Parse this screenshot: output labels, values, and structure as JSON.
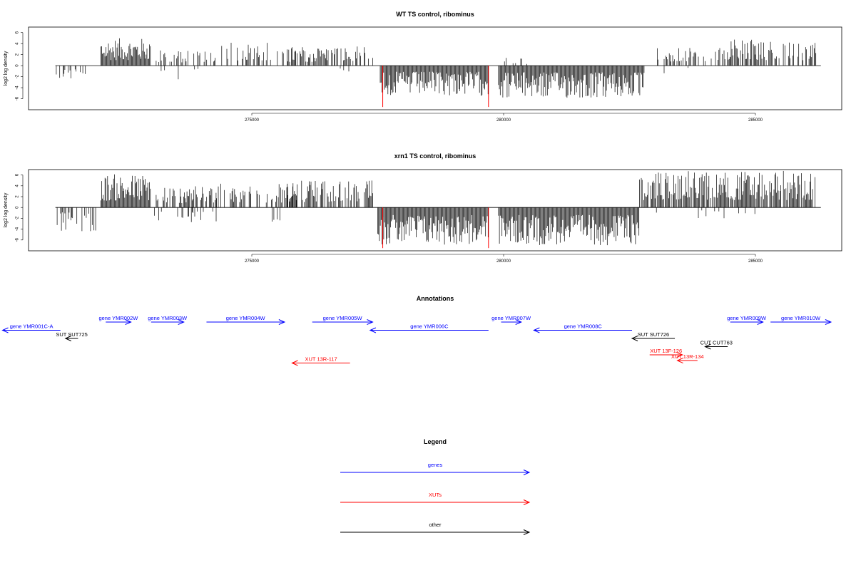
{
  "chart_data": [
    {
      "type": "bar",
      "title": "WT TS control, ribominus",
      "ylabel": "log2 log density",
      "xlim": [
        270000,
        286500
      ],
      "ylim": [
        -8,
        7
      ],
      "x_ticks": [
        275000,
        280000,
        285000
      ],
      "y_ticks": [
        6,
        4,
        2,
        0,
        -2,
        -4,
        -6
      ],
      "highlight_x": [
        277600,
        279700
      ],
      "highlight_y": -7.5,
      "regions": [
        {
          "x": [
            271100,
            271700
          ],
          "strand": "-",
          "max": 2.5,
          "density": 0.4
        },
        {
          "x": [
            272000,
            273000
          ],
          "strand": "+",
          "max": 5.0,
          "density": 1.0
        },
        {
          "x": [
            273100,
            274300
          ],
          "strand": "+",
          "max": 2.8,
          "density": 0.45
        },
        {
          "x": [
            273200,
            274000
          ],
          "strand": "-",
          "max": 2.5,
          "density": 0.1
        },
        {
          "x": [
            274300,
            275900
          ],
          "strand": "+",
          "max": 4.5,
          "density": 0.35
        },
        {
          "x": [
            275700,
            277400
          ],
          "strand": "+",
          "max": 3.5,
          "density": 0.6
        },
        {
          "x": [
            276400,
            277200
          ],
          "strand": "-",
          "max": 1.5,
          "density": 0.1
        },
        {
          "x": [
            277550,
            279700
          ],
          "strand": "-",
          "max": 5.5,
          "density": 1.0
        },
        {
          "x": [
            279900,
            282800
          ],
          "strand": "-",
          "max": 6.0,
          "density": 1.0
        },
        {
          "x": [
            280000,
            280600
          ],
          "strand": "+",
          "max": 1.5,
          "density": 0.15
        },
        {
          "x": [
            283000,
            284500
          ],
          "strand": "+",
          "max": 3.2,
          "density": 0.5
        },
        {
          "x": [
            283000,
            283800
          ],
          "strand": "-",
          "max": 2.0,
          "density": 0.1
        },
        {
          "x": [
            284500,
            286200
          ],
          "strand": "+",
          "max": 4.8,
          "density": 0.6
        }
      ]
    },
    {
      "type": "bar",
      "title": "xrn1 TS control, ribominus",
      "ylabel": "log2 log density",
      "xlim": [
        270000,
        286500
      ],
      "ylim": [
        -8,
        7
      ],
      "x_ticks": [
        275000,
        280000,
        285000
      ],
      "y_ticks": [
        6,
        4,
        2,
        0,
        -2,
        -4,
        -6
      ],
      "highlight_x": [
        277600,
        279700
      ],
      "highlight_y": -7.5,
      "regions": [
        {
          "x": [
            271100,
            271900
          ],
          "strand": "-",
          "max": 4.5,
          "density": 0.45
        },
        {
          "x": [
            272000,
            273000
          ],
          "strand": "+",
          "max": 6.2,
          "density": 1.0
        },
        {
          "x": [
            273100,
            274300
          ],
          "strand": "+",
          "max": 4.0,
          "density": 0.6
        },
        {
          "x": [
            273000,
            274300
          ],
          "strand": "-",
          "max": 3.0,
          "density": 0.2
        },
        {
          "x": [
            274300,
            275900
          ],
          "strand": "+",
          "max": 4.5,
          "density": 0.5
        },
        {
          "x": [
            275200,
            275900
          ],
          "strand": "-",
          "max": 3.0,
          "density": 0.1
        },
        {
          "x": [
            275700,
            277400
          ],
          "strand": "+",
          "max": 5.0,
          "density": 0.7
        },
        {
          "x": [
            277500,
            279700
          ],
          "strand": "-",
          "max": 7.0,
          "density": 1.0
        },
        {
          "x": [
            279900,
            282700
          ],
          "strand": "-",
          "max": 7.0,
          "density": 1.0
        },
        {
          "x": [
            282700,
            286200
          ],
          "strand": "+",
          "max": 6.8,
          "density": 0.85
        },
        {
          "x": [
            283000,
            285000
          ],
          "strand": "-",
          "max": 2.0,
          "density": 0.1
        }
      ]
    }
  ],
  "annotations": {
    "title": "Annotations",
    "features": [
      {
        "label": "gene YMR001C-A",
        "type": "gene",
        "start": 271200,
        "end": 270050,
        "lane": 1
      },
      {
        "label": "gene YMR002W",
        "type": "gene",
        "start": 272100,
        "end": 272600,
        "lane": 0
      },
      {
        "label": "gene YMR003W",
        "type": "gene",
        "start": 273000,
        "end": 273650,
        "lane": 0
      },
      {
        "label": "gene YMR004W",
        "type": "gene",
        "start": 274100,
        "end": 275650,
        "lane": 0
      },
      {
        "label": "gene YMR005W",
        "type": "gene",
        "start": 276200,
        "end": 277400,
        "lane": 0
      },
      {
        "label": "gene YMR006C",
        "type": "gene",
        "start": 279700,
        "end": 277350,
        "lane": 1
      },
      {
        "label": "gene YMR007W",
        "type": "gene",
        "start": 279950,
        "end": 280350,
        "lane": 0
      },
      {
        "label": "gene YMR008C",
        "type": "gene",
        "start": 282550,
        "end": 280600,
        "lane": 1
      },
      {
        "label": "gene YMR009W",
        "type": "gene",
        "start": 284500,
        "end": 285150,
        "lane": 0
      },
      {
        "label": "gene YMR010W",
        "type": "gene",
        "start": 285300,
        "end": 286500,
        "lane": 0
      },
      {
        "label": "SUT SUT725",
        "type": "other",
        "start": 271550,
        "end": 271300,
        "lane": 2
      },
      {
        "label": "SUT SUT726",
        "type": "other",
        "start": 283400,
        "end": 282550,
        "lane": 2
      },
      {
        "label": "CUT CUT763",
        "type": "other",
        "start": 284450,
        "end": 284000,
        "lane": 3
      },
      {
        "label": "XUT 13R-117",
        "type": "xut",
        "start": 276950,
        "end": 275800,
        "lane": 5
      },
      {
        "label": "XUT 13F-126",
        "type": "xut",
        "start": 282900,
        "end": 283550,
        "lane": 4
      },
      {
        "label": "XUT 13R-134",
        "type": "xut",
        "start": 283850,
        "end": 283450,
        "lane": 4.7
      }
    ]
  },
  "legend": {
    "title": "Legend",
    "items": [
      {
        "label": "genes",
        "type": "gene"
      },
      {
        "label": "XUTs",
        "type": "xut"
      },
      {
        "label": "other",
        "type": "other"
      }
    ]
  },
  "colors": {
    "gene": "#0000ff",
    "xut": "#ff0000",
    "other": "#000000",
    "highlight": "#ff0000",
    "bar": "#000000"
  }
}
